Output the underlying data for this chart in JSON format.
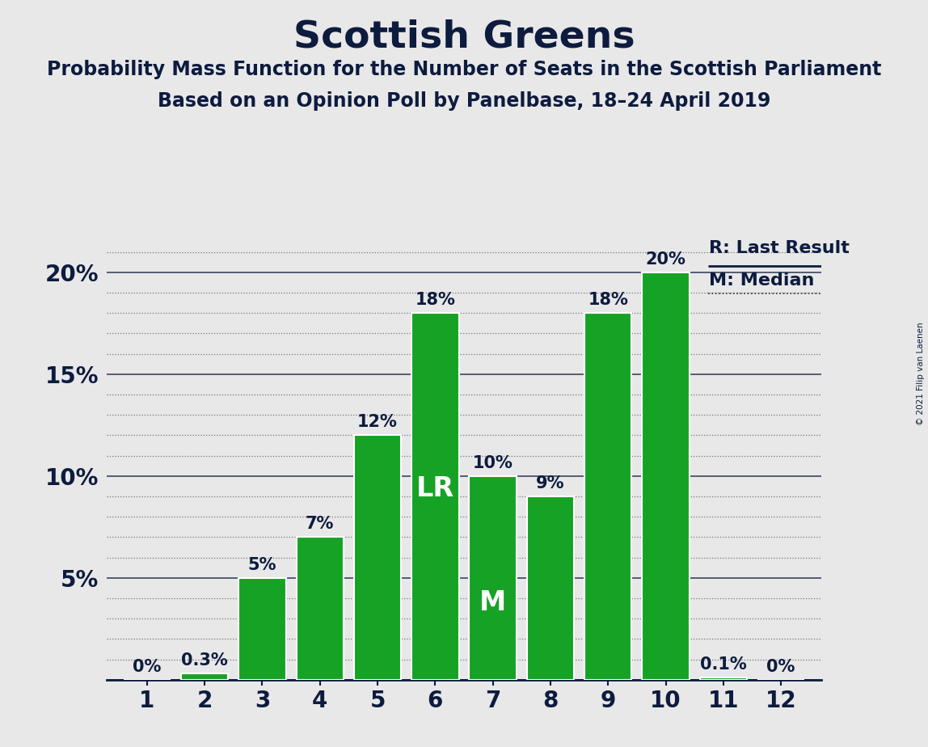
{
  "title": "Scottish Greens",
  "subtitle1": "Probability Mass Function for the Number of Seats in the Scottish Parliament",
  "subtitle2": "Based on an Opinion Poll by Panelbase, 18–24 April 2019",
  "copyright": "© 2021 Filip van Laenen",
  "categories": [
    1,
    2,
    3,
    4,
    5,
    6,
    7,
    8,
    9,
    10,
    11,
    12
  ],
  "values": [
    0.0,
    0.3,
    5.0,
    7.0,
    12.0,
    18.0,
    10.0,
    9.0,
    18.0,
    20.0,
    0.1,
    0.0
  ],
  "bar_color": "#16a325",
  "bar_edge_color": "#ffffff",
  "background_color": "#e8e8e8",
  "text_color": "#0d1b3e",
  "bar_labels": [
    "0%",
    "0.3%",
    "5%",
    "7%",
    "12%",
    "18%",
    "10%",
    "9%",
    "18%",
    "20%",
    "0.1%",
    "0%"
  ],
  "last_result_seat": 6,
  "median_seat": 7,
  "ylim": [
    0,
    22
  ],
  "major_yticks": [
    0,
    5,
    10,
    15,
    20
  ],
  "ytick_labels": [
    "",
    "5%",
    "10%",
    "15%",
    "20%"
  ],
  "legend_lr_label": "R: Last Result",
  "legend_m_label": "M: Median",
  "title_fontsize": 34,
  "subtitle_fontsize": 17,
  "label_fontsize": 16,
  "bar_label_fontsize": 15,
  "axis_tick_fontsize": 20
}
